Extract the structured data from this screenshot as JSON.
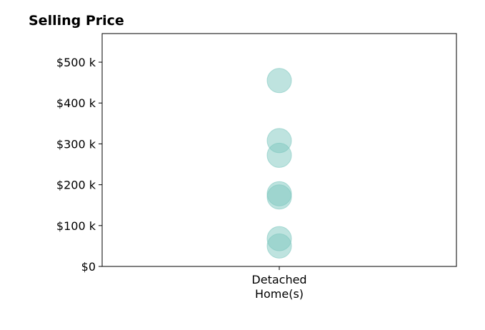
{
  "chart_data": {
    "type": "scatter",
    "title": "Selling Price",
    "xlabel": "",
    "ylabel": "",
    "categories": [
      "Detached\nHome(s)"
    ],
    "series": [
      {
        "category_index": 0,
        "values": [
          455000,
          308000,
          272000,
          178000,
          170000,
          68000,
          50000
        ]
      }
    ],
    "ylim": [
      0,
      570000
    ],
    "yticks": [
      {
        "value": 0,
        "label": "$0"
      },
      {
        "value": 100000,
        "label": "$100 k"
      },
      {
        "value": 200000,
        "label": "$200 k"
      },
      {
        "value": 300000,
        "label": "$300 k"
      },
      {
        "value": 400000,
        "label": "$400 k"
      },
      {
        "value": 500000,
        "label": "$500 k"
      }
    ],
    "grid": false,
    "marker_color": "#7ec8c0",
    "marker_opacity": 0.5
  }
}
